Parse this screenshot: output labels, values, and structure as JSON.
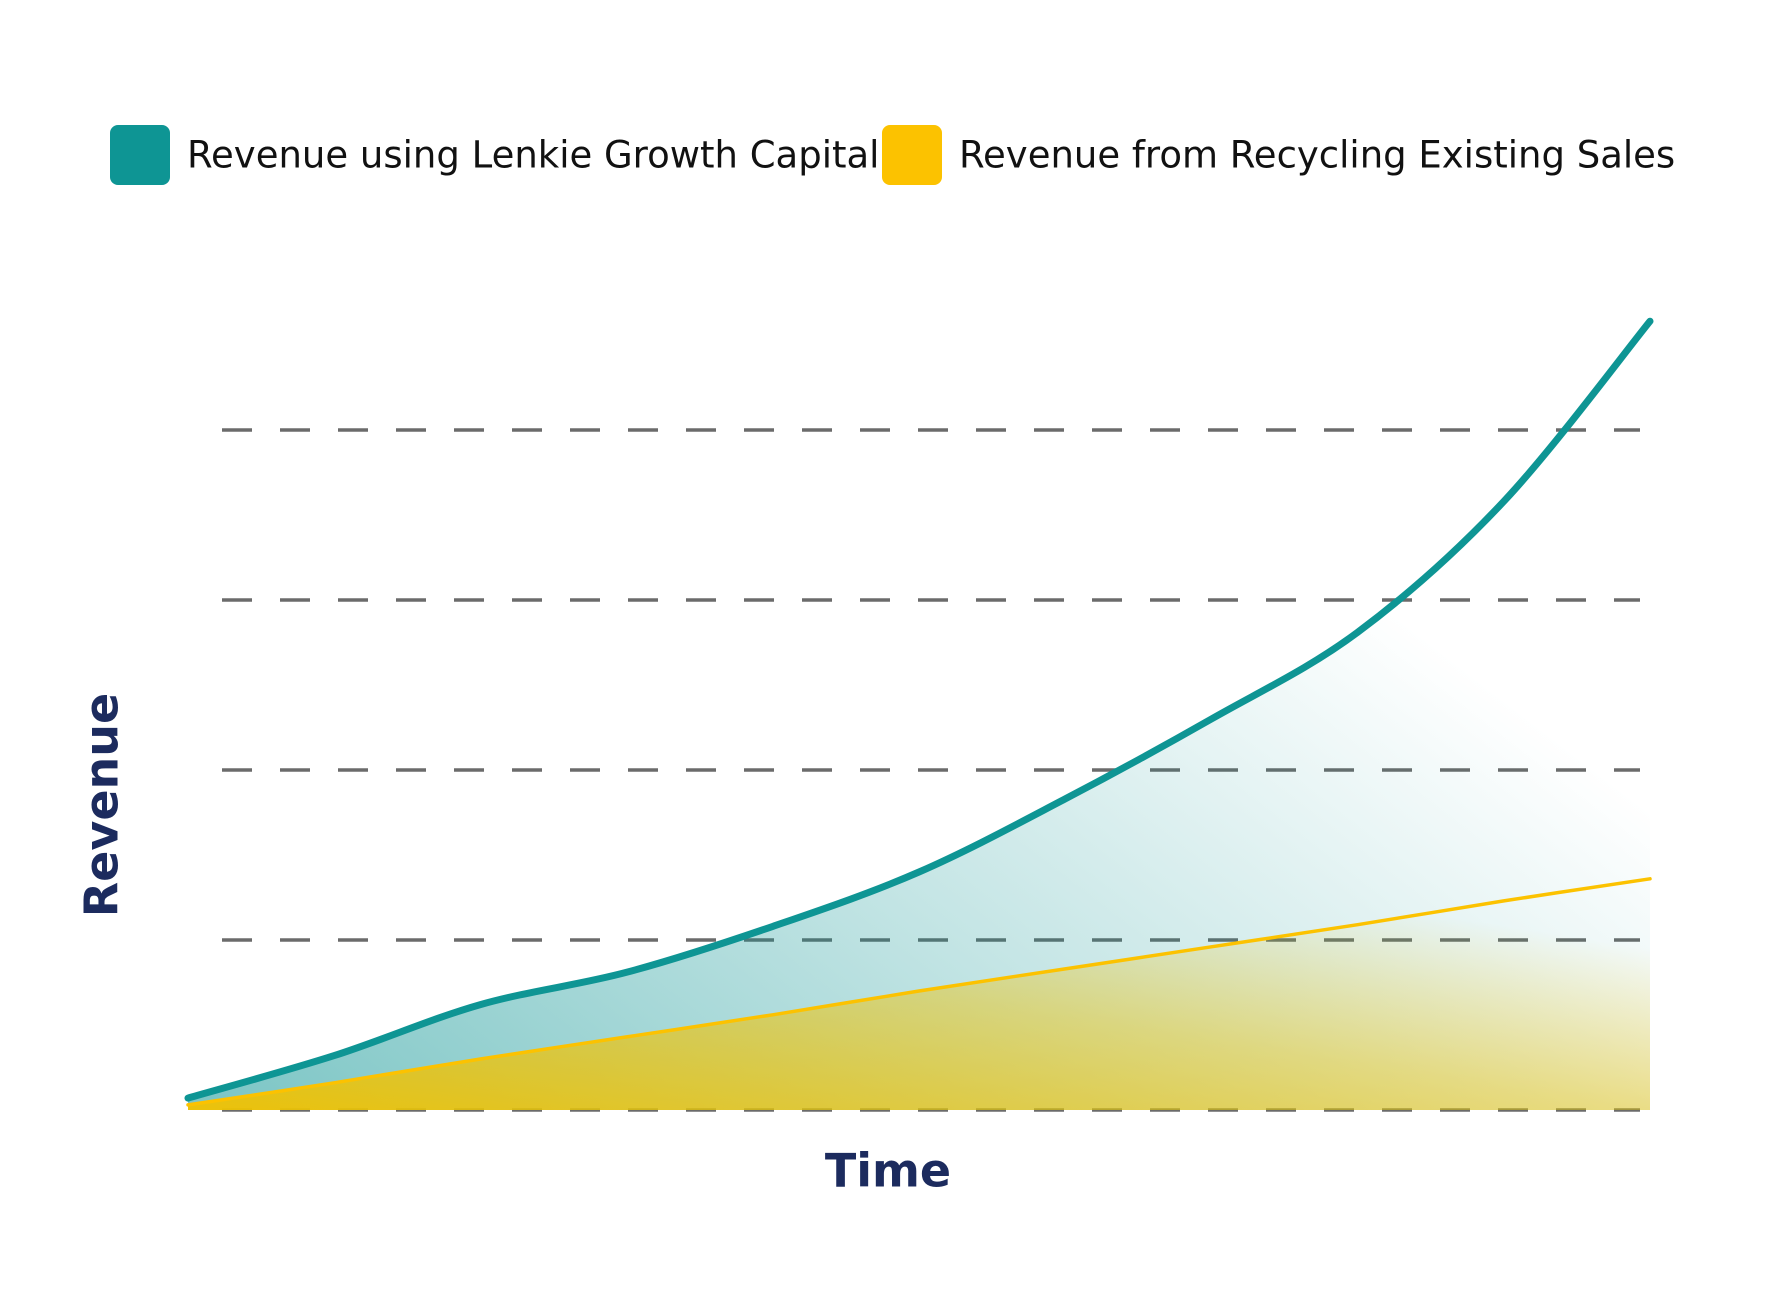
{
  "chart_data": {
    "type": "area",
    "x": [
      0,
      1,
      2,
      3,
      4,
      5,
      6,
      7,
      8,
      9,
      10
    ],
    "xlim": [
      0,
      10
    ],
    "ylim": [
      0,
      5
    ],
    "yticks": [
      0,
      1,
      2,
      3,
      4
    ],
    "grid": true,
    "legend": "top",
    "xlabel": "Time",
    "ylabel": "Revenue",
    "series": [
      {
        "name": "Revenue using Lenkie Growth Capital",
        "color": "#0e9594",
        "values": [
          0.07,
          0.32,
          0.62,
          0.81,
          1.08,
          1.4,
          1.83,
          2.3,
          2.81,
          3.58,
          4.64
        ]
      },
      {
        "name": "Revenue from Recycling Existing Sales",
        "color": "#fcc200",
        "values": [
          0.03,
          0.16,
          0.3,
          0.43,
          0.56,
          0.7,
          0.83,
          0.96,
          1.09,
          1.23,
          1.36
        ]
      }
    ]
  }
}
